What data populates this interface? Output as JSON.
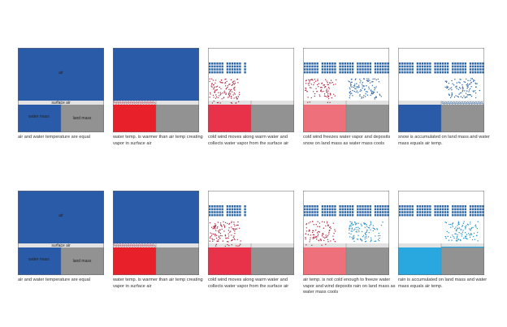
{
  "labels": {
    "air": "air",
    "surface_air": "surface air",
    "water_mass": "water mass",
    "land_mass": "land mass"
  },
  "colors": {
    "air_blue": "#2a5ba8",
    "water_warm": "#e8202a",
    "water_warm2": "#e8324a",
    "water_cooling": "#ee707a",
    "land": "#929292",
    "surface_air": "#e2e2e2",
    "wind": "#2e67a6",
    "vapor_dot": "#b0304a",
    "snow_dot": "#2e67a6",
    "rain_dot": "#2a93c4",
    "rain_water": "#29a8e0",
    "outline": "#666666"
  },
  "rows": [
    {
      "panels": [
        {
          "stage": "equal",
          "water_color": "#2a5ba8",
          "caption": "air and water temperature are equal"
        },
        {
          "stage": "warm",
          "water_color": "#e8202a",
          "caption": "water temp. is warmer than air temp creating vapor in surface air"
        },
        {
          "stage": "wind",
          "water_color": "#e8324a",
          "caption": "cold wind moves along warm water and collects water vapor from the surface air"
        },
        {
          "stage": "freeze",
          "water_color": "#ee707a",
          "dot_color": "#2e67a6",
          "caption": "cold wind freezes water vapor and deposits snow on land mass as water mass cools"
        },
        {
          "stage": "snow",
          "water_color": "#2a5ba8",
          "dot_color": "#2e67a6",
          "caption": "snow is accumulated on land mass and water mass equals air temp."
        }
      ]
    },
    {
      "panels": [
        {
          "stage": "equal",
          "water_color": "#2a5ba8",
          "caption": "air and water temperature are equal"
        },
        {
          "stage": "warm",
          "water_color": "#e8202a",
          "caption": "water temp. is warmer than air temp creating vapor in surface air"
        },
        {
          "stage": "wind",
          "water_color": "#e8324a",
          "caption": "cold wind moves along warm water and collects water vapor from the surface air"
        },
        {
          "stage": "freeze",
          "water_color": "#ee707a",
          "dot_color": "#2a93c4",
          "caption": "air temp. is not cold enough to freeze water vapor and wind deposits rain on land mass as water mass cools"
        },
        {
          "stage": "rain",
          "water_color": "#29a8e0",
          "dot_color": "#2a93c4",
          "caption": "rain is accumulated on land mass and water mass equals air temp."
        }
      ]
    }
  ]
}
